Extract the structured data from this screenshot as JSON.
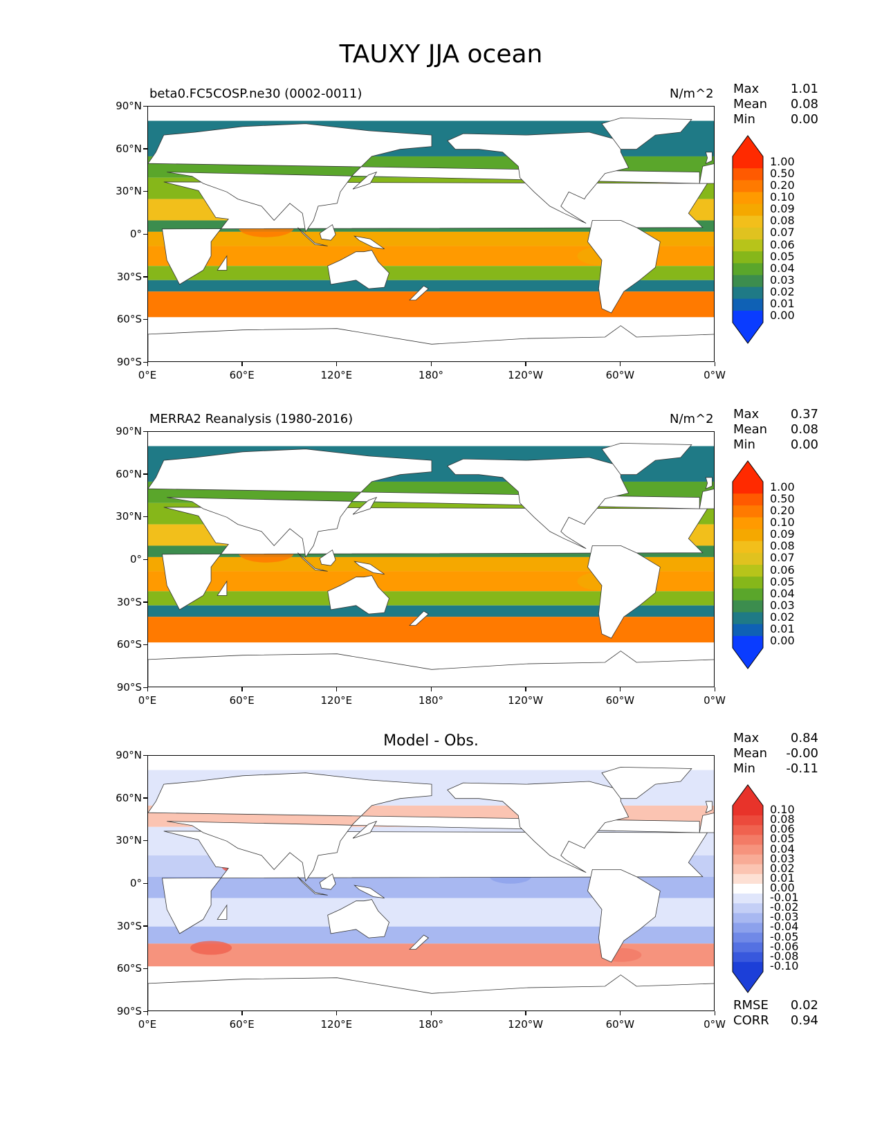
{
  "figure": {
    "title": "TAUXY JJA ocean"
  },
  "axes": {
    "lat_labels": [
      "90°N",
      "60°N",
      "30°N",
      "0°",
      "30°S",
      "60°S",
      "90°S"
    ],
    "lon_labels": [
      "0°E",
      "60°E",
      "120°E",
      "180°",
      "120°W",
      "60°W",
      "0°W"
    ]
  },
  "panels": [
    {
      "left_title": "beta0.FC5COSP.ne30 (0002-0011)",
      "right_title": "N/m^2",
      "stats": [
        {
          "key": "Max",
          "value": "1.01"
        },
        {
          "key": "Mean",
          "value": "0.08"
        },
        {
          "key": "Min",
          "value": "0.00"
        }
      ],
      "colorbar": {
        "labels": [
          "1.00",
          "0.50",
          "0.20",
          "0.10",
          "0.09",
          "0.08",
          "0.07",
          "0.06",
          "0.05",
          "0.04",
          "0.03",
          "0.02",
          "0.01",
          "0.00"
        ],
        "colors": [
          "#ff2a00",
          "#ff5a00",
          "#ff7a00",
          "#ff9a00",
          "#f5a800",
          "#f2bf1b",
          "#e0c21f",
          "#b7c41a",
          "#86b71a",
          "#5aa62b",
          "#3c8d4e",
          "#1f7a86",
          "#0f61b5",
          "#0a3cff"
        ],
        "max_color": "#ff2a00",
        "min_color": "#0a3cff"
      }
    },
    {
      "left_title": "MERRA2 Reanalysis (1980-2016)",
      "right_title": "N/m^2",
      "stats": [
        {
          "key": "Max",
          "value": "0.37"
        },
        {
          "key": "Mean",
          "value": "0.08"
        },
        {
          "key": "Min",
          "value": "0.00"
        }
      ],
      "colorbar": {
        "labels": [
          "1.00",
          "0.50",
          "0.20",
          "0.10",
          "0.09",
          "0.08",
          "0.07",
          "0.06",
          "0.05",
          "0.04",
          "0.03",
          "0.02",
          "0.01",
          "0.00"
        ],
        "colors": [
          "#ff2a00",
          "#ff5a00",
          "#ff7a00",
          "#ff9a00",
          "#f5a800",
          "#f2bf1b",
          "#e0c21f",
          "#b7c41a",
          "#86b71a",
          "#5aa62b",
          "#3c8d4e",
          "#1f7a86",
          "#0f61b5",
          "#0a3cff"
        ],
        "max_color": "#ff2a00",
        "min_color": "#0a3cff"
      }
    },
    {
      "center_title": "Model - Obs.",
      "stats": [
        {
          "key": "Max",
          "value": "0.84"
        },
        {
          "key": "Mean",
          "value": "-0.00"
        },
        {
          "key": "Min",
          "value": "-0.11"
        }
      ],
      "colorbar": {
        "labels": [
          "0.10",
          "0.08",
          "0.06",
          "0.05",
          "0.04",
          "0.03",
          "0.02",
          "0.01",
          "0.00",
          "-0.01",
          "-0.02",
          "-0.03",
          "-0.04",
          "-0.05",
          "-0.06",
          "-0.08",
          "-0.10"
        ],
        "colors": [
          "#e8332a",
          "#ec4a3c",
          "#f0624f",
          "#f37b66",
          "#f6937d",
          "#f8ab96",
          "#fbc4b2",
          "#fde0d4",
          "#ffffff",
          "#e0e6fb",
          "#c4cff6",
          "#a8b8f1",
          "#8ca1ec",
          "#7089e7",
          "#5471e2",
          "#3858dd",
          "#1c3fd8"
        ],
        "max_color": "#e8332a",
        "min_color": "#1c3fd8"
      },
      "metrics": [
        {
          "key": "RMSE",
          "value": "0.02"
        },
        {
          "key": "CORR",
          "value": "0.94"
        }
      ]
    }
  ]
}
